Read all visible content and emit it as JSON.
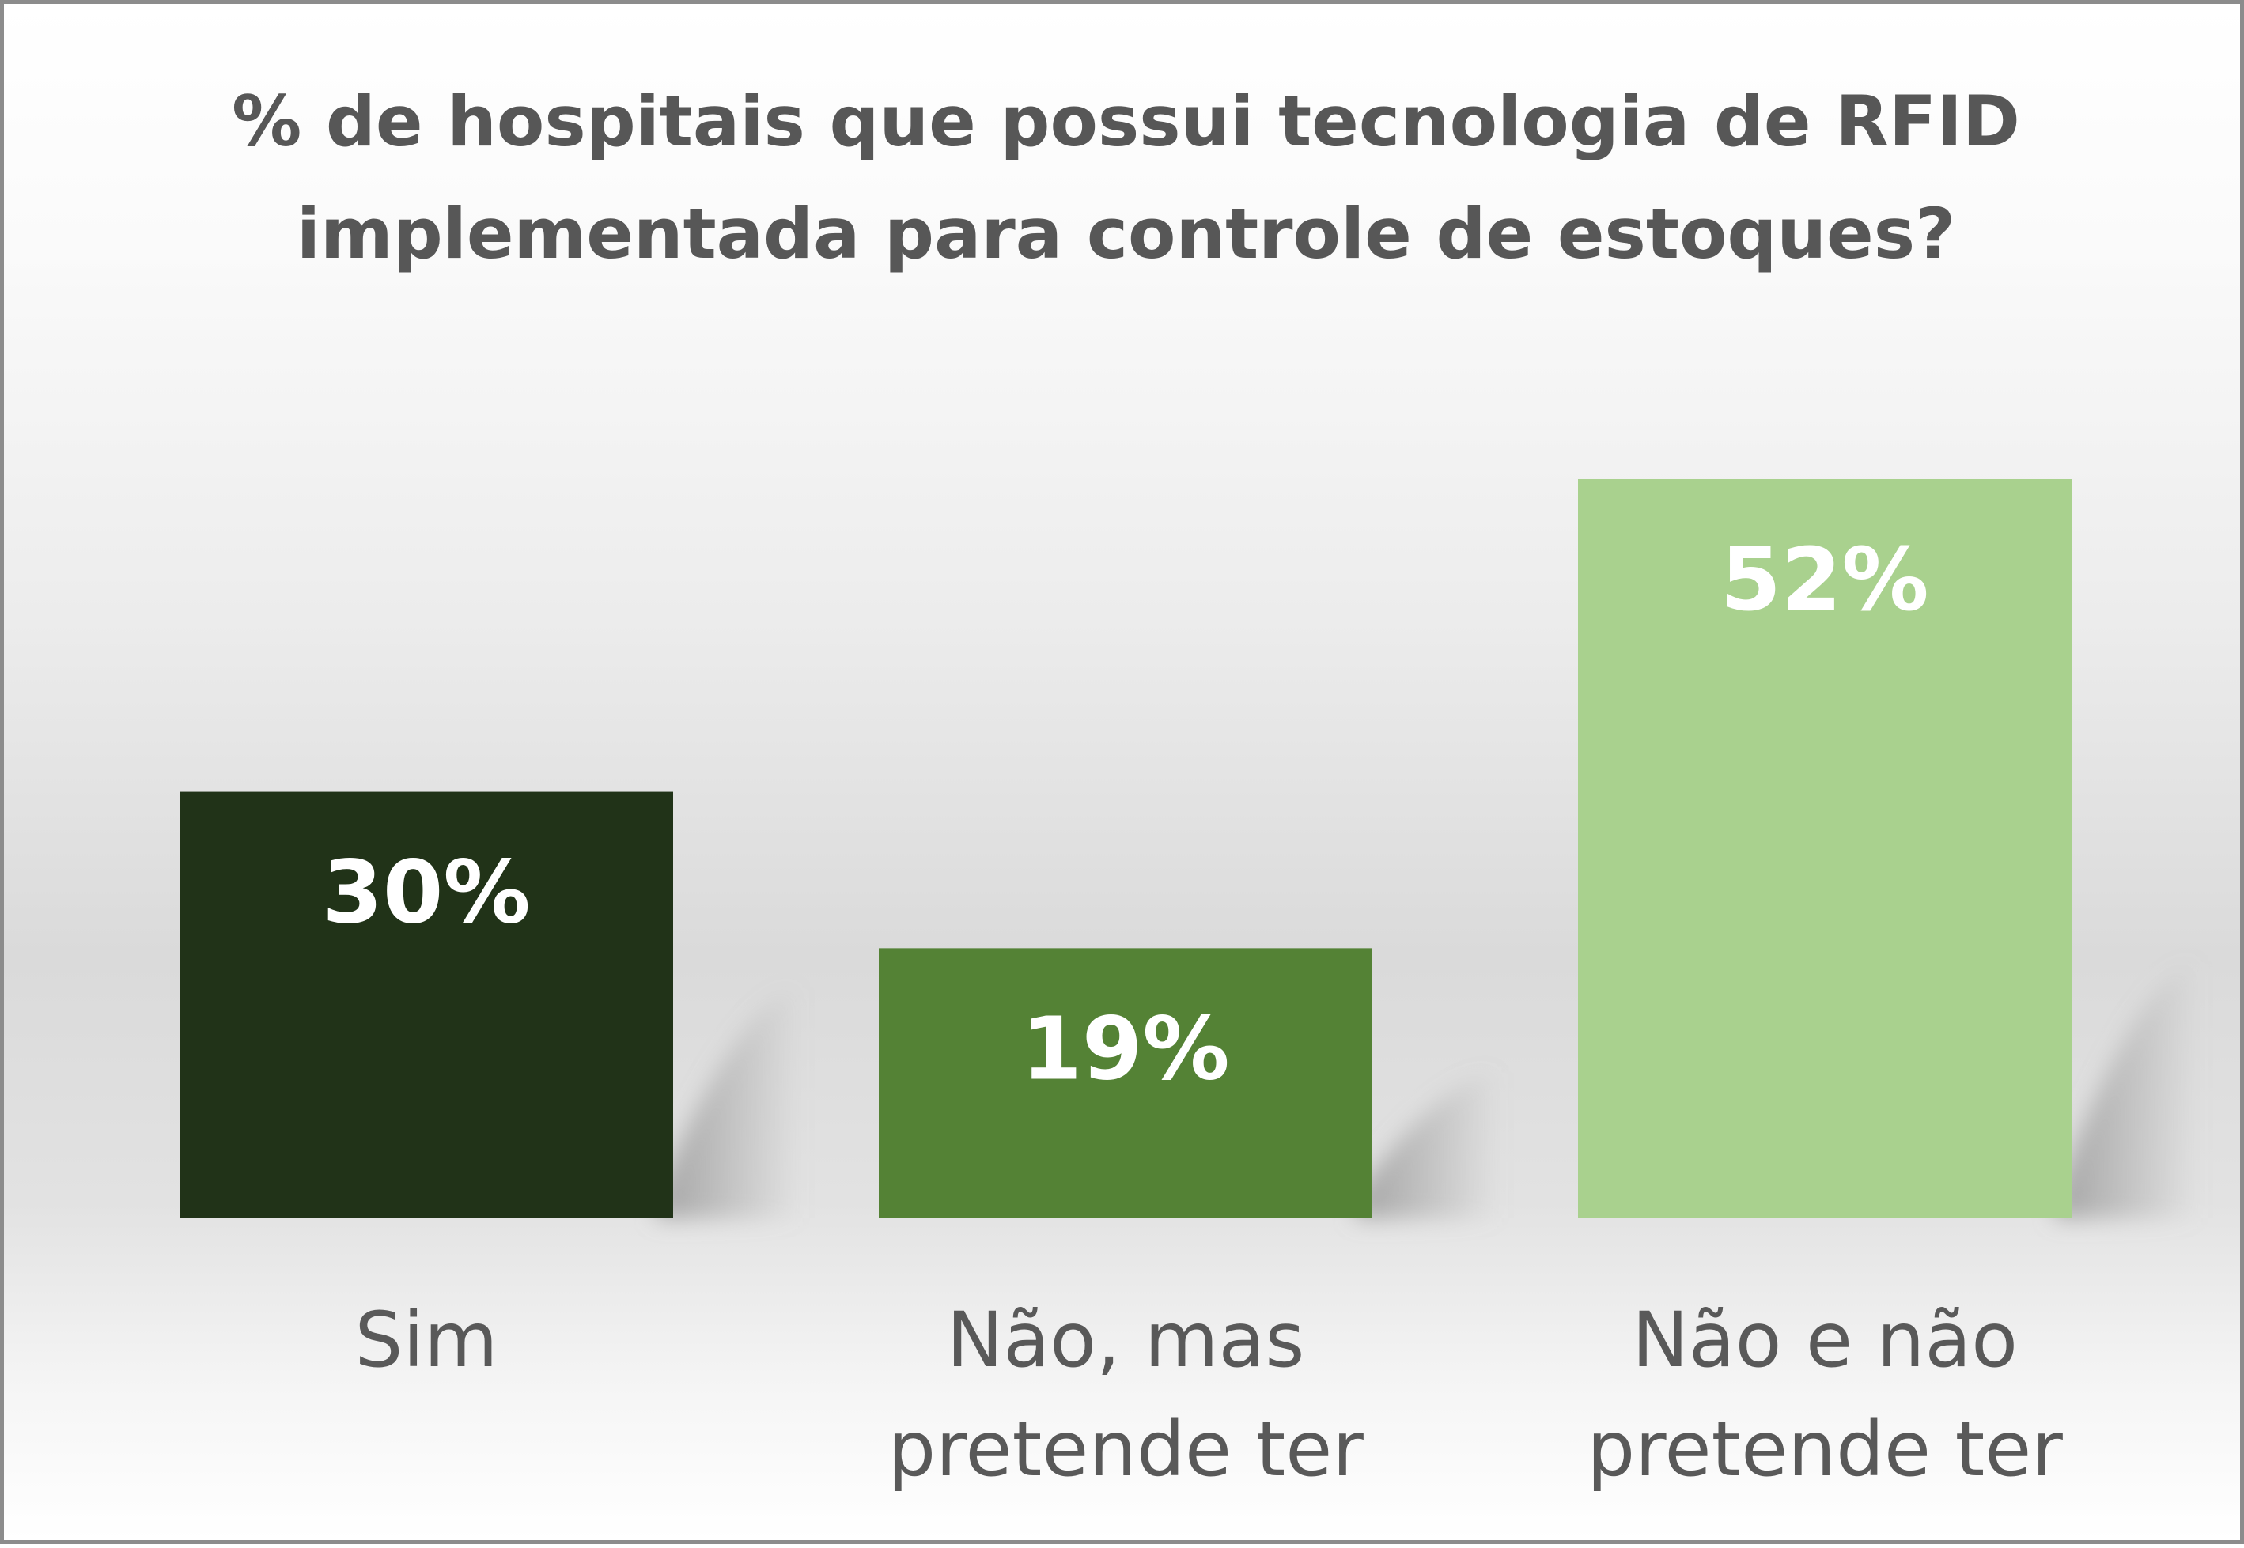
{
  "chart_data": {
    "type": "bar",
    "title_lines": [
      "% de hospitais que possui tecnologia de RFID",
      "implementada para controle de estoques?"
    ],
    "categories": [
      [
        "Sim"
      ],
      [
        "Não, mas",
        "pretende ter"
      ],
      [
        "Não e não",
        "pretende ter"
      ]
    ],
    "values": [
      30,
      19,
      52
    ],
    "data_labels": [
      "30%",
      "19%",
      "52%"
    ],
    "colors": [
      "#213318",
      "#548235",
      "#a9d18e"
    ],
    "ylim": [
      0,
      100
    ],
    "grid": false,
    "legend": "none"
  }
}
